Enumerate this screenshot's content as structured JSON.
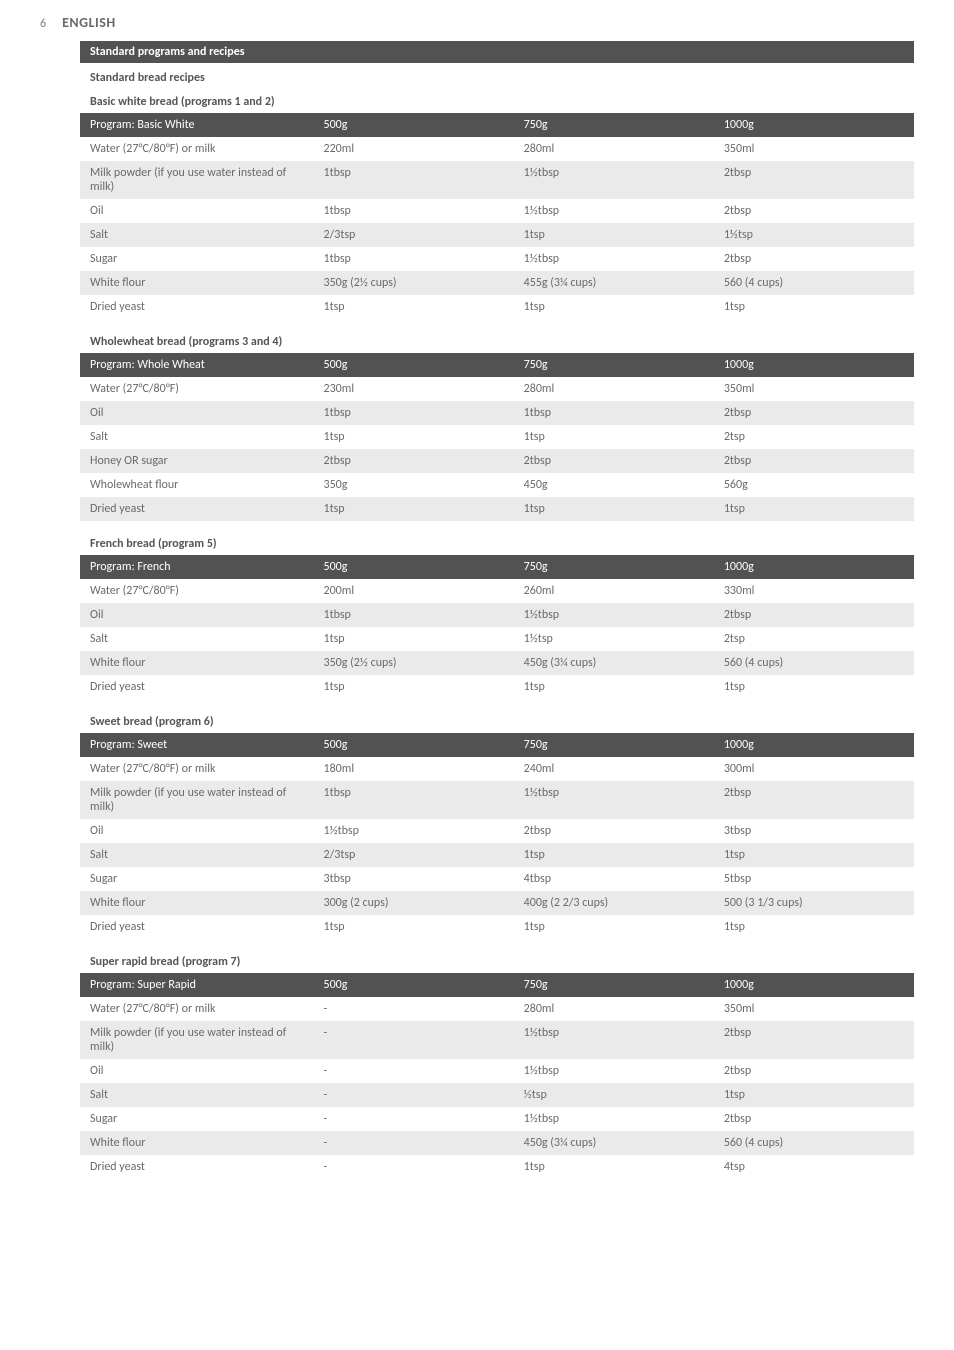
{
  "page": {
    "number": "6",
    "language": "ENGLISH"
  },
  "section_heading": "Standard programs and recipes",
  "subsection_heading": "Standard bread recipes",
  "tables": [
    {
      "caption": "Basic white bread (programs 1 and 2)",
      "header": [
        "Program: Basic White",
        "500g",
        "750g",
        "1000g"
      ],
      "rows": [
        [
          "Water (27°C/80°F) or milk",
          "220ml",
          "280ml",
          "350ml"
        ],
        [
          "Milk powder (if you use water instead of milk)",
          "1tbsp",
          "1½tbsp",
          "2tbsp"
        ],
        [
          "Oil",
          "1tbsp",
          "1½tbsp",
          "2tbsp"
        ],
        [
          "Salt",
          "2/3tsp",
          "1tsp",
          "1½tsp"
        ],
        [
          "Sugar",
          "1tbsp",
          "1½tbsp",
          "2tbsp"
        ],
        [
          "White flour",
          "350g (2½ cups)",
          "455g (3¼ cups)",
          "560 (4 cups)"
        ],
        [
          "Dried yeast",
          "1tsp",
          "1tsp",
          "1tsp"
        ]
      ]
    },
    {
      "caption": "Wholewheat bread (programs 3 and 4)",
      "header": [
        "Program: Whole Wheat",
        "500g",
        "750g",
        "1000g"
      ],
      "rows": [
        [
          "Water (27°C/80°F)",
          "230ml",
          "280ml",
          "350ml"
        ],
        [
          "Oil",
          "1tbsp",
          "1tbsp",
          "2tbsp"
        ],
        [
          "Salt",
          "1tsp",
          "1tsp",
          "2tsp"
        ],
        [
          "Honey OR sugar",
          "2tbsp",
          "2tbsp",
          "2tbsp"
        ],
        [
          "Wholewheat flour",
          "350g",
          "450g",
          "560g"
        ],
        [
          "Dried yeast",
          "1tsp",
          "1tsp",
          "1tsp"
        ]
      ]
    },
    {
      "caption": "French bread (program 5)",
      "header": [
        "Program: French",
        "500g",
        "750g",
        "1000g"
      ],
      "rows": [
        [
          "Water (27°C/80°F)",
          "200ml",
          "260ml",
          "330ml"
        ],
        [
          "Oil",
          "1tbsp",
          "1½tbsp",
          "2tbsp"
        ],
        [
          "Salt",
          "1tsp",
          "1½tsp",
          "2tsp"
        ],
        [
          "White flour",
          "350g (2½ cups)",
          "450g (3¼ cups)",
          "560 (4 cups)"
        ],
        [
          "Dried yeast",
          "1tsp",
          "1tsp",
          "1tsp"
        ]
      ]
    },
    {
      "caption": "Sweet bread (program 6)",
      "header": [
        "Program: Sweet",
        "500g",
        "750g",
        "1000g"
      ],
      "rows": [
        [
          "Water (27°C/80°F) or milk",
          "180ml",
          "240ml",
          "300ml"
        ],
        [
          "Milk powder (if you use water instead of milk)",
          "1tbsp",
          "1½tbsp",
          "2tbsp"
        ],
        [
          "Oil",
          "1½tbsp",
          "2tbsp",
          "3tbsp"
        ],
        [
          "Salt",
          "2/3tsp",
          "1tsp",
          "1tsp"
        ],
        [
          "Sugar",
          "3tbsp",
          "4tbsp",
          "5tbsp"
        ],
        [
          "White flour",
          "300g (2 cups)",
          "400g (2 2/3 cups)",
          "500 (3 1/3 cups)"
        ],
        [
          "Dried yeast",
          "1tsp",
          "1tsp",
          "1tsp"
        ]
      ]
    },
    {
      "caption": "Super rapid bread (program 7)",
      "header": [
        "Program: Super Rapid",
        "500g",
        "750g",
        "1000g"
      ],
      "rows": [
        [
          "Water (27°C/80°F) or milk",
          "-",
          "280ml",
          "350ml"
        ],
        [
          "Milk powder (if you use water instead of milk)",
          "-",
          "1½tbsp",
          "2tbsp"
        ],
        [
          "Oil",
          "-",
          "1½tbsp",
          "2tbsp"
        ],
        [
          "Salt",
          "-",
          "½tsp",
          "1tsp"
        ],
        [
          "Sugar",
          "-",
          "1½tbsp",
          "2tbsp"
        ],
        [
          "White flour",
          "-",
          "450g (3¼ cups)",
          "560 (4 cups)"
        ],
        [
          "Dried yeast",
          "-",
          "1tsp",
          "4tsp"
        ]
      ]
    }
  ]
}
